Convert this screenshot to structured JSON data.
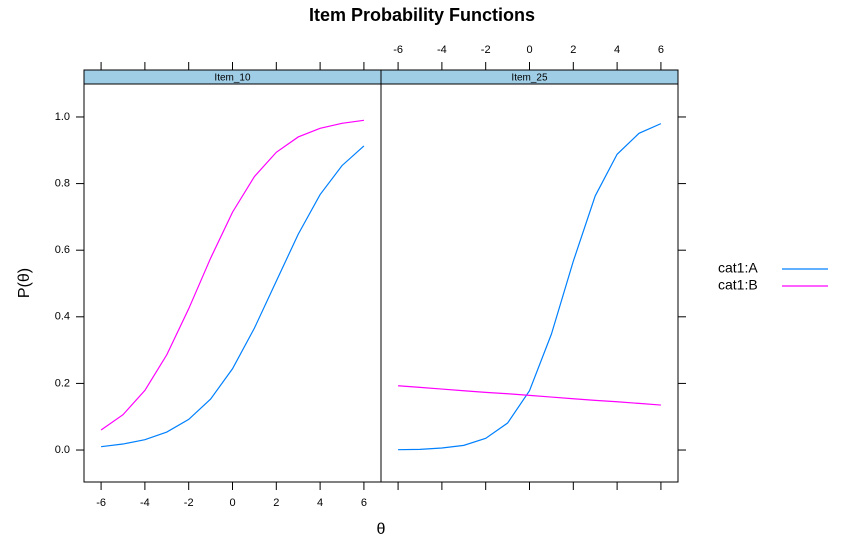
{
  "chart_data": {
    "type": "line",
    "title": "Item Probability Functions",
    "xlabel": "θ",
    "ylabel": "P(θ)",
    "x": [
      -6,
      -5,
      -4,
      -3,
      -2,
      -1,
      0,
      1,
      2,
      3,
      4,
      5,
      6
    ],
    "xlim": [
      -6.78,
      6.78
    ],
    "ylim": [
      -0.096,
      1.099
    ],
    "xticks": [
      -6,
      -4,
      -2,
      0,
      2,
      4,
      6
    ],
    "yticks": [
      {
        "value": 0,
        "label": "0.0"
      },
      0.2,
      0.4,
      0.6,
      0.8,
      {
        "value": 1,
        "label": "1.0"
      }
    ],
    "legend": "right",
    "panels": [
      {
        "title": "Item_10",
        "series": [
          {
            "name": "cat1:A",
            "color": "#0080ff",
            "values": [
              0.01,
              0.018,
              0.031,
              0.054,
              0.092,
              0.153,
              0.244,
              0.366,
              0.507,
              0.648,
              0.767,
              0.854,
              0.913
            ]
          },
          {
            "name": "cat1:B",
            "color": "#ff00ff",
            "values": [
              0.06,
              0.106,
              0.179,
              0.286,
              0.424,
              0.576,
              0.714,
              0.821,
              0.894,
              0.94,
              0.966,
              0.981,
              0.99
            ]
          }
        ]
      },
      {
        "title": "Item_25",
        "series": [
          {
            "name": "cat1:A",
            "color": "#0080ff",
            "values": [
              0.001,
              0.002,
              0.006,
              0.014,
              0.035,
              0.081,
              0.178,
              0.348,
              0.567,
              0.763,
              0.888,
              0.951,
              0.98
            ]
          },
          {
            "name": "cat1:B",
            "color": "#ff00ff",
            "values": [
              0.193,
              0.188,
              0.183,
              0.178,
              0.173,
              0.169,
              0.164,
              0.159,
              0.154,
              0.149,
              0.145,
              0.14,
              0.135
            ]
          }
        ]
      }
    ]
  }
}
